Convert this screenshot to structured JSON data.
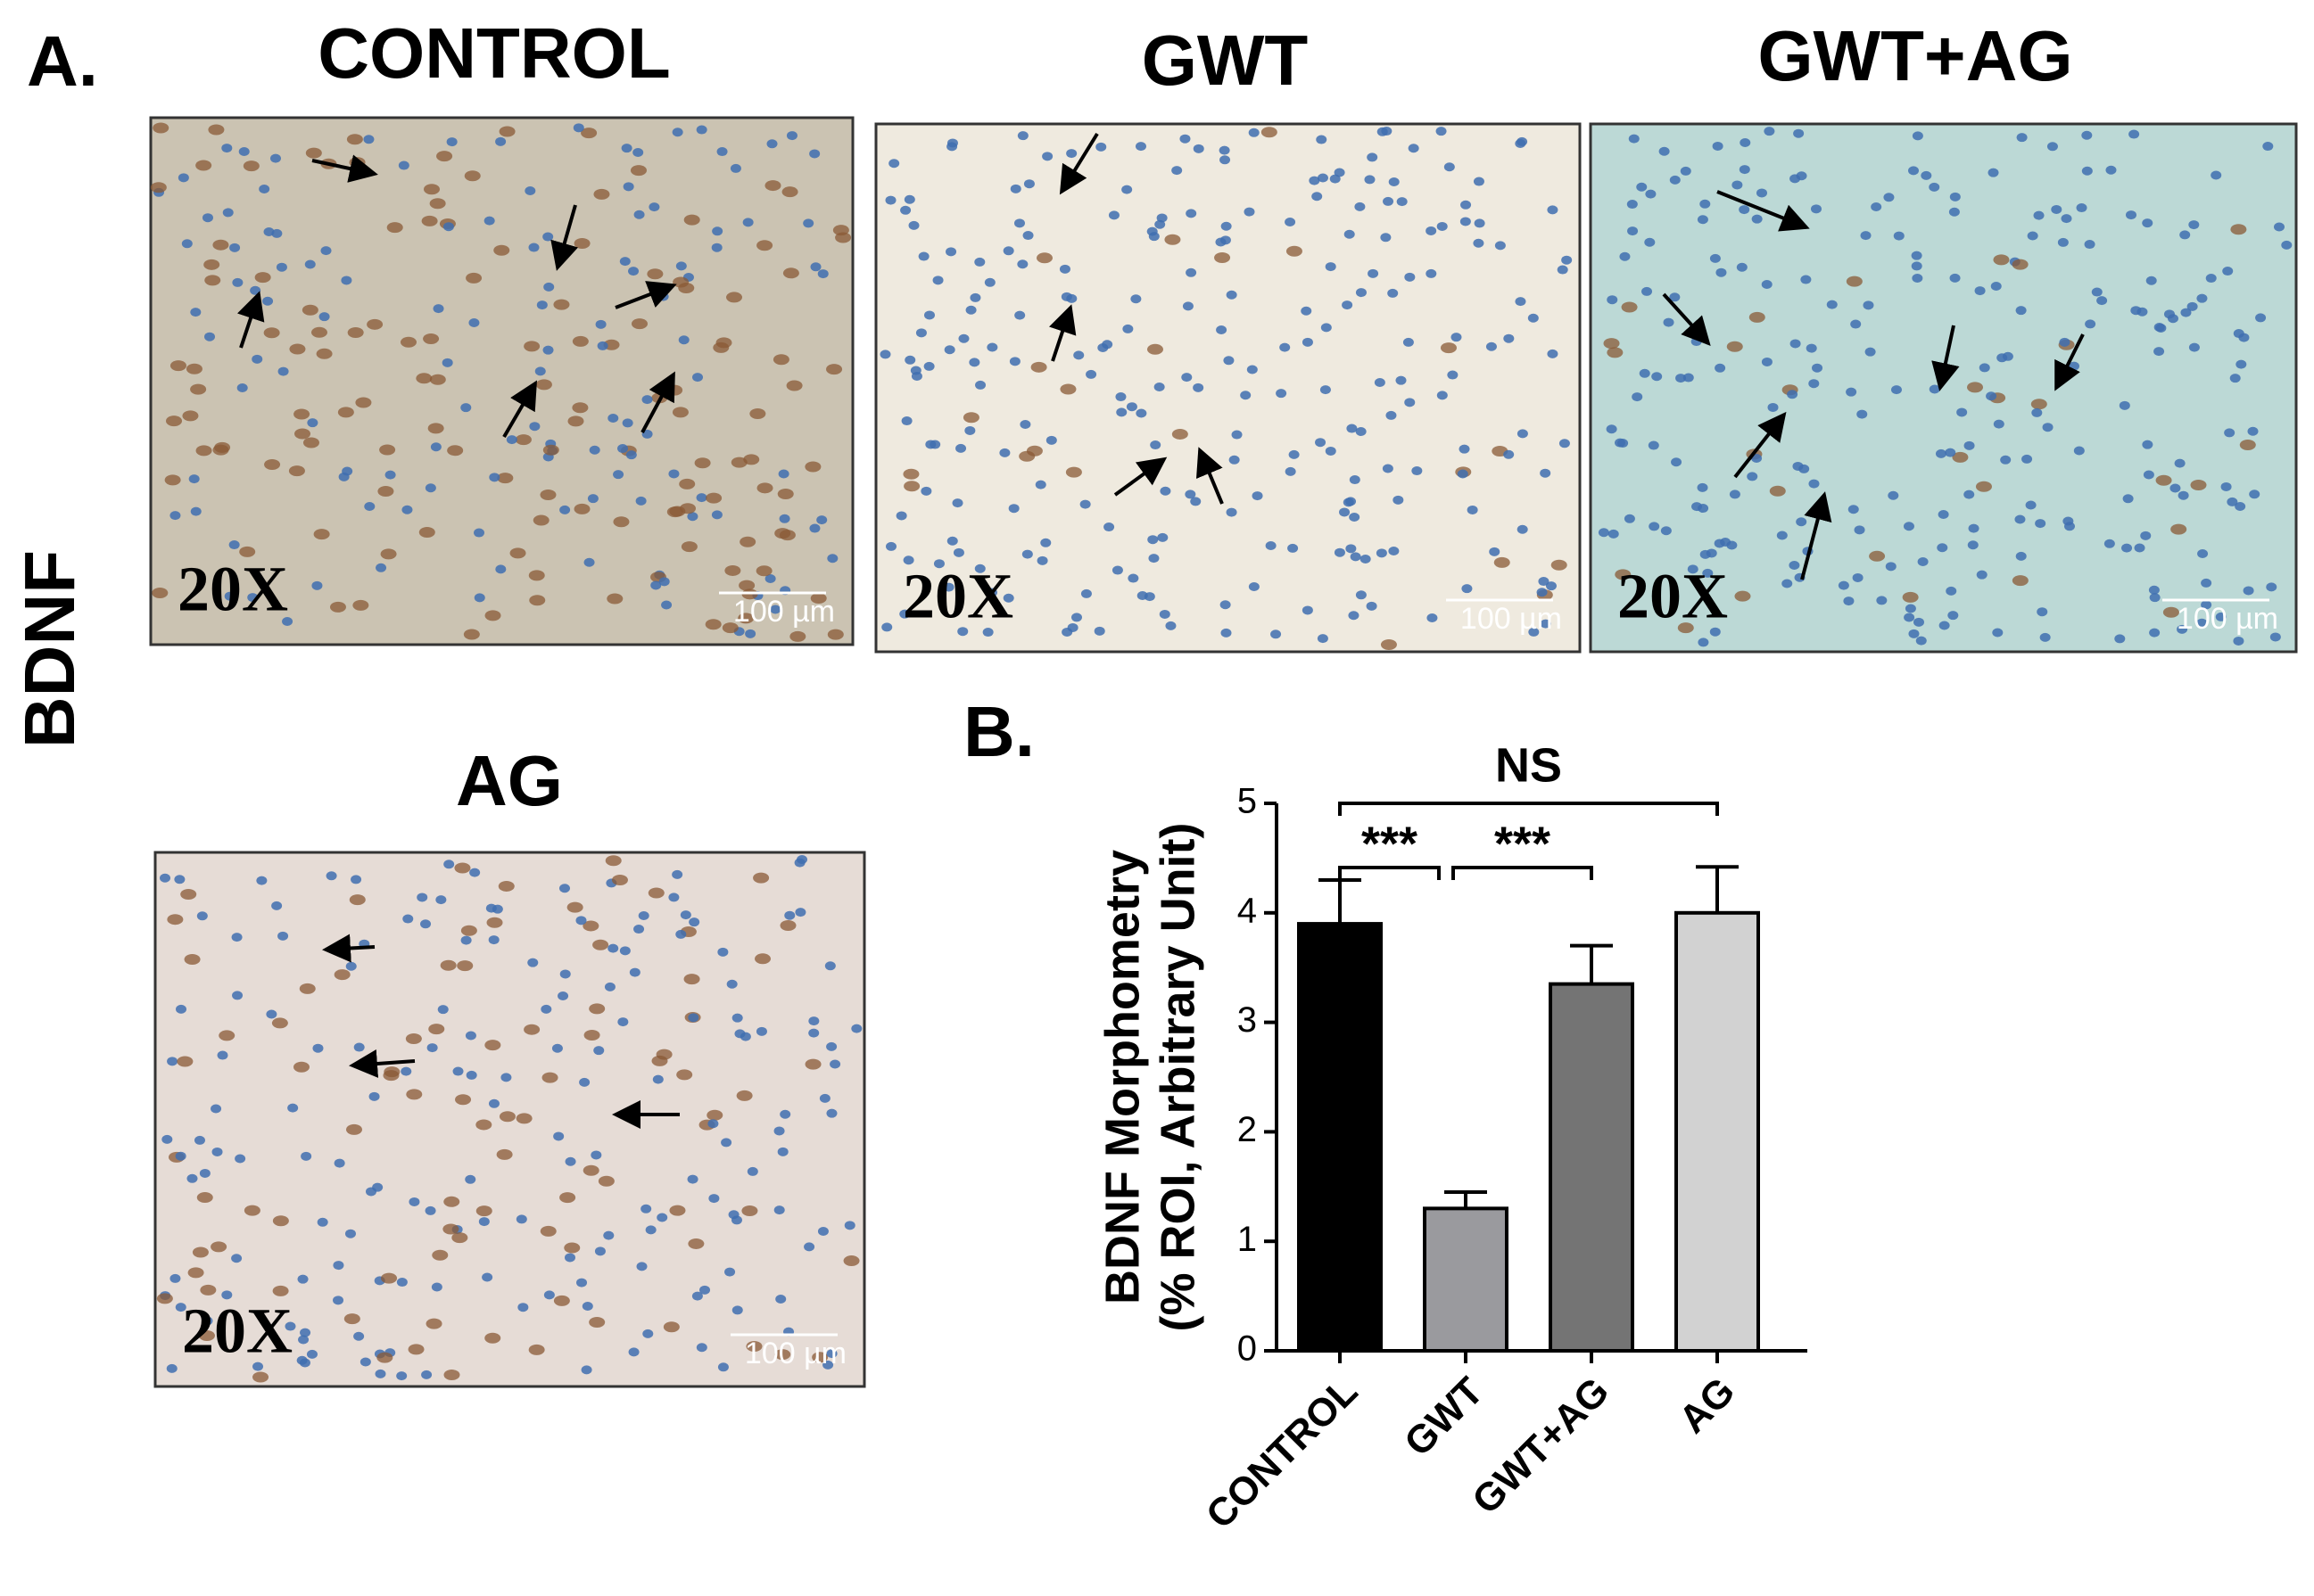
{
  "panel_a_label": "A.",
  "side_label": "BDNF",
  "micrographs": [
    {
      "title": "CONTROL",
      "magnification": "20X",
      "scale_bar": "100 µm"
    },
    {
      "title": "GWT",
      "magnification": "20X",
      "scale_bar": "100 µm"
    },
    {
      "title": "GWT+AG",
      "magnification": "20X",
      "scale_bar": "100 µm"
    },
    {
      "title": "AG",
      "magnification": "20X",
      "scale_bar": "100 µm"
    }
  ],
  "panel_b_label": "B.",
  "chart_data": {
    "type": "bar",
    "ylabel": [
      "BDNF Morphometry",
      "(% ROI, Arbitrary Unit)"
    ],
    "categories": [
      "CONTROL",
      "GWT",
      "GWT+AG",
      "AG"
    ],
    "values": [
      3.9,
      1.3,
      3.35,
      4.0
    ],
    "errors": [
      0.4,
      0.15,
      0.35,
      0.42
    ],
    "colors": [
      "#000000",
      "#9a9a9e",
      "#747474",
      "#d2d2d2"
    ],
    "ylim": [
      0,
      5
    ],
    "yticks": [
      0,
      1,
      2,
      3,
      4,
      5
    ],
    "annotations": [
      "NS",
      "***",
      "***"
    ]
  }
}
